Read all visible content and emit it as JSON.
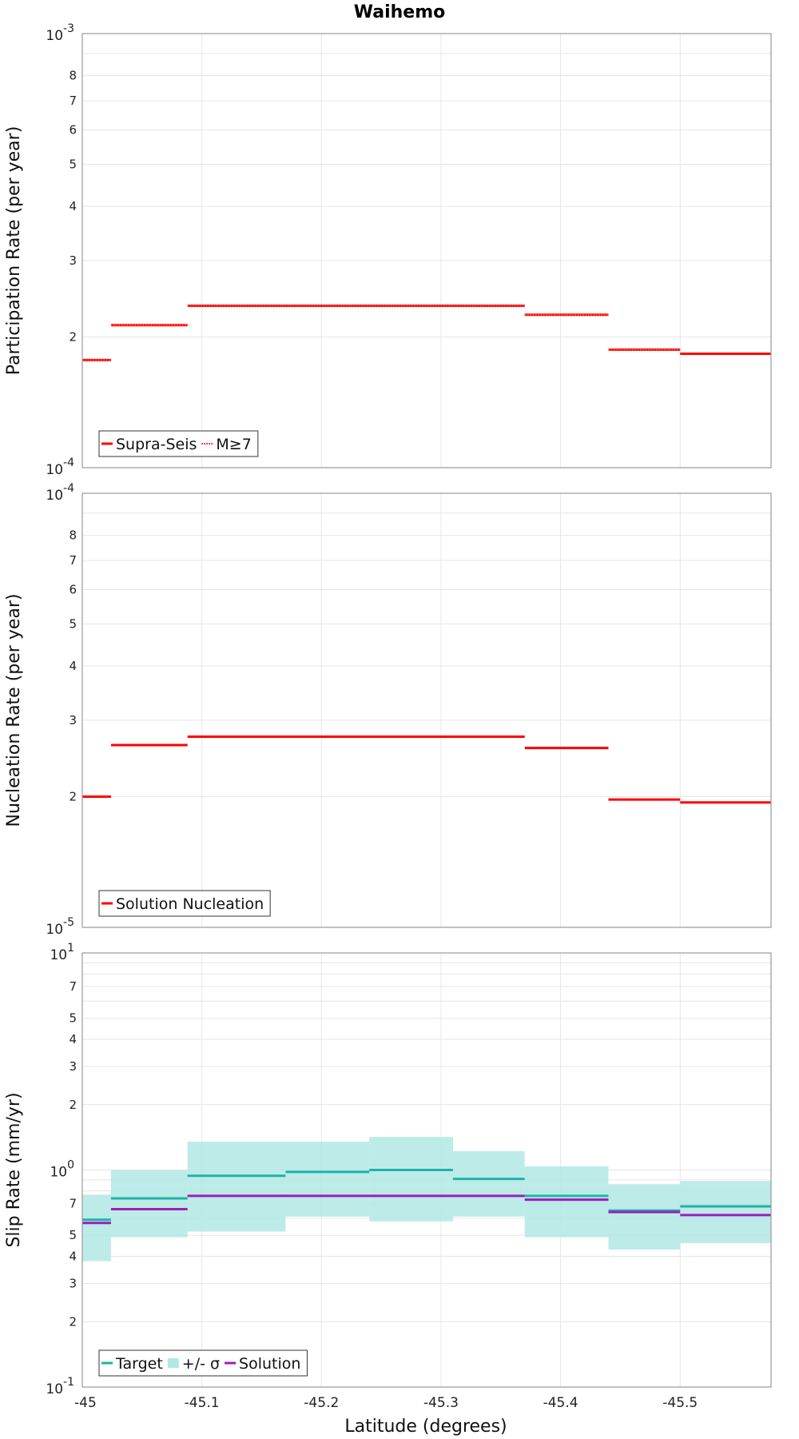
{
  "title": "Waihemo",
  "xlabel": "Latitude (degrees)",
  "x_ticks": [
    "-45",
    "-45.1",
    "-45.2",
    "-45.3",
    "-45.4",
    "-45.5"
  ],
  "chart_data": [
    {
      "type": "line",
      "ylabel": "Participation Rate (per year)",
      "yscale": "log",
      "ylim": [
        0.0001,
        0.001
      ],
      "xlim": [
        -45.0,
        -45.576
      ],
      "y_decade_labels": [
        {
          "base": "10",
          "exp": "-4"
        },
        {
          "base": "10",
          "exp": "-3"
        }
      ],
      "y_minor_ticks": [
        "2",
        "3",
        "4",
        "5",
        "6",
        "7",
        "8"
      ],
      "legend_position": "bottom-left",
      "grid": true,
      "series": [
        {
          "name": "Supra-Seis",
          "color": "#ff0000",
          "style": "solid",
          "segments": [
            {
              "x0": -45.0,
              "x1": -45.024,
              "y": 0.000177
            },
            {
              "x0": -45.024,
              "x1": -45.088,
              "y": 0.000213
            },
            {
              "x0": -45.088,
              "x1": -45.37,
              "y": 0.000236
            },
            {
              "x0": -45.37,
              "x1": -45.44,
              "y": 0.000225
            },
            {
              "x0": -45.44,
              "x1": -45.5,
              "y": 0.000187
            },
            {
              "x0": -45.5,
              "x1": -45.576,
              "y": 0.000183
            }
          ]
        },
        {
          "name": "M≥7",
          "color": "#ff0000",
          "style": "dotted",
          "segments": [
            {
              "x0": -45.0,
              "x1": -45.024,
              "y": 0.000177
            },
            {
              "x0": -45.024,
              "x1": -45.088,
              "y": 0.000213
            },
            {
              "x0": -45.088,
              "x1": -45.37,
              "y": 0.000236
            },
            {
              "x0": -45.37,
              "x1": -45.44,
              "y": 0.000225
            },
            {
              "x0": -45.44,
              "x1": -45.5,
              "y": 0.000187
            }
          ]
        }
      ]
    },
    {
      "type": "line",
      "ylabel": "Nucleation Rate (per year)",
      "yscale": "log",
      "ylim": [
        1e-05,
        0.0001
      ],
      "xlim": [
        -45.0,
        -45.576
      ],
      "y_decade_labels": [
        {
          "base": "10",
          "exp": "-5"
        },
        {
          "base": "10",
          "exp": "-4"
        }
      ],
      "y_minor_ticks": [
        "2",
        "3",
        "4",
        "5",
        "6",
        "7",
        "8"
      ],
      "legend_position": "bottom-left",
      "grid": true,
      "series": [
        {
          "name": "Solution Nucleation",
          "color": "#ff0000",
          "style": "solid",
          "segments": [
            {
              "x0": -45.0,
              "x1": -45.024,
              "y": 2e-05
            },
            {
              "x0": -45.024,
              "x1": -45.088,
              "y": 2.63e-05
            },
            {
              "x0": -45.088,
              "x1": -45.37,
              "y": 2.75e-05
            },
            {
              "x0": -45.37,
              "x1": -45.44,
              "y": 2.59e-05
            },
            {
              "x0": -45.44,
              "x1": -45.5,
              "y": 1.97e-05
            },
            {
              "x0": -45.5,
              "x1": -45.576,
              "y": 1.94e-05
            }
          ]
        }
      ]
    },
    {
      "type": "line",
      "ylabel": "Slip Rate (mm/yr)",
      "yscale": "log",
      "ylim": [
        0.1,
        10
      ],
      "xlim": [
        -45.0,
        -45.576
      ],
      "y_decade_labels": [
        {
          "base": "10",
          "exp": "-1"
        },
        {
          "base": "10",
          "exp": "0"
        },
        {
          "base": "10",
          "exp": "1"
        }
      ],
      "y_minor_ticks": [
        "2",
        "3",
        "4",
        "5",
        "7",
        "2",
        "3",
        "4",
        "5",
        "7"
      ],
      "y_minor_values": [
        0.2,
        0.3,
        0.4,
        0.5,
        0.7,
        2,
        3,
        4,
        5,
        7
      ],
      "legend_position": "bottom-left",
      "grid": true,
      "series": [
        {
          "name": "Target",
          "color": "#20b2aa",
          "style": "solid",
          "segments": [
            {
              "x0": -45.0,
              "x1": -45.024,
              "y": 0.59
            },
            {
              "x0": -45.024,
              "x1": -45.088,
              "y": 0.74
            },
            {
              "x0": -45.088,
              "x1": -45.17,
              "y": 0.94
            },
            {
              "x0": -45.17,
              "x1": -45.24,
              "y": 0.98
            },
            {
              "x0": -45.24,
              "x1": -45.31,
              "y": 1.0
            },
            {
              "x0": -45.31,
              "x1": -45.37,
              "y": 0.91
            },
            {
              "x0": -45.37,
              "x1": -45.44,
              "y": 0.76
            },
            {
              "x0": -45.44,
              "x1": -45.5,
              "y": 0.65
            },
            {
              "x0": -45.5,
              "x1": -45.576,
              "y": 0.68
            }
          ]
        },
        {
          "name": "+/- σ",
          "color": "#b2e8e4",
          "style": "band",
          "segments": [
            {
              "x0": -45.0,
              "x1": -45.024,
              "low": 0.38,
              "high": 0.77
            },
            {
              "x0": -45.024,
              "x1": -45.088,
              "low": 0.49,
              "high": 1.0
            },
            {
              "x0": -45.088,
              "x1": -45.17,
              "low": 0.52,
              "high": 1.35
            },
            {
              "x0": -45.17,
              "x1": -45.24,
              "low": 0.61,
              "high": 1.35
            },
            {
              "x0": -45.24,
              "x1": -45.31,
              "low": 0.58,
              "high": 1.42
            },
            {
              "x0": -45.31,
              "x1": -45.37,
              "low": 0.61,
              "high": 1.22
            },
            {
              "x0": -45.37,
              "x1": -45.44,
              "low": 0.49,
              "high": 1.04
            },
            {
              "x0": -45.44,
              "x1": -45.5,
              "low": 0.43,
              "high": 0.86
            },
            {
              "x0": -45.5,
              "x1": -45.576,
              "low": 0.46,
              "high": 0.89
            }
          ]
        },
        {
          "name": "Solution",
          "color": "#9b1fb8",
          "style": "solid",
          "segments": [
            {
              "x0": -45.0,
              "x1": -45.024,
              "y": 0.57
            },
            {
              "x0": -45.024,
              "x1": -45.088,
              "y": 0.66
            },
            {
              "x0": -45.088,
              "x1": -45.37,
              "y": 0.76
            },
            {
              "x0": -45.37,
              "x1": -45.44,
              "y": 0.73
            },
            {
              "x0": -45.44,
              "x1": -45.5,
              "y": 0.64
            },
            {
              "x0": -45.5,
              "x1": -45.576,
              "y": 0.62
            }
          ]
        }
      ]
    }
  ]
}
